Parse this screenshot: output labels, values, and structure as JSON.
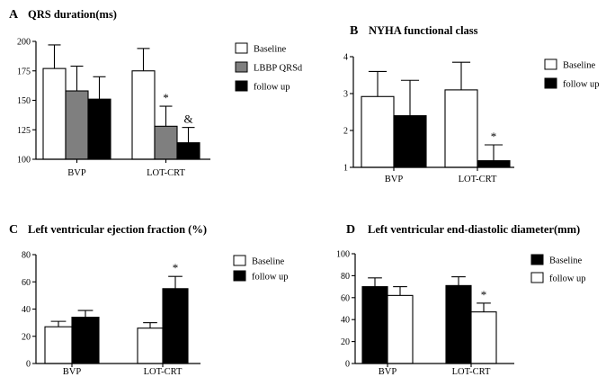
{
  "chart_data": [
    {
      "id": "A",
      "type": "bar",
      "letter": "A",
      "title": "QRS duration(ms)",
      "categories": [
        "BVP",
        "LOT-CRT"
      ],
      "ylim": [
        100,
        200
      ],
      "yticks": [
        100,
        125,
        150,
        175,
        200
      ],
      "legend_position": "right",
      "series": [
        {
          "name": "Baseline",
          "color": "#ffffff",
          "values": [
            177,
            175
          ],
          "errors": [
            20,
            19
          ]
        },
        {
          "name": "LBBP QRSd",
          "color": "#7f7f7f",
          "values": [
            158,
            128
          ],
          "errors": [
            21,
            17
          ]
        },
        {
          "name": "follow up",
          "color": "#000000",
          "values": [
            151,
            114
          ],
          "errors": [
            19,
            13
          ]
        }
      ],
      "annotations": [
        {
          "category": 1,
          "series": 1,
          "text": "*"
        },
        {
          "category": 1,
          "series": 2,
          "text": "&"
        }
      ]
    },
    {
      "id": "B",
      "type": "bar",
      "letter": "B",
      "title": "NYHA functional class",
      "categories": [
        "BVP",
        "LOT-CRT"
      ],
      "ylim": [
        1,
        4
      ],
      "yticks": [
        1,
        2,
        3,
        4
      ],
      "legend_position": "right",
      "series": [
        {
          "name": "Baseline",
          "color": "#ffffff",
          "values": [
            2.92,
            3.1
          ],
          "errors": [
            0.68,
            0.75
          ]
        },
        {
          "name": "follow up",
          "color": "#000000",
          "values": [
            2.4,
            1.18
          ],
          "errors": [
            0.96,
            0.43
          ]
        }
      ],
      "annotations": [
        {
          "category": 1,
          "series": 1,
          "text": "*"
        }
      ]
    },
    {
      "id": "C",
      "type": "bar",
      "letter": "C",
      "title": "Left ventricular ejection fraction (%)",
      "categories": [
        "BVP",
        "LOT-CRT"
      ],
      "ylim": [
        0,
        80
      ],
      "yticks": [
        0,
        20,
        40,
        60,
        80
      ],
      "legend_position": "right",
      "series": [
        {
          "name": "Baseline",
          "color": "#ffffff",
          "values": [
            27,
            26
          ],
          "errors": [
            4,
            4
          ]
        },
        {
          "name": "follow up",
          "color": "#000000",
          "values": [
            34,
            55
          ],
          "errors": [
            5,
            9
          ]
        }
      ],
      "annotations": [
        {
          "category": 1,
          "series": 1,
          "text": "*"
        }
      ]
    },
    {
      "id": "D",
      "type": "bar",
      "letter": "D",
      "title": "Left ventricular end-diastolic diameter(mm)",
      "categories": [
        "BVP",
        "LOT-CRT"
      ],
      "ylim": [
        0,
        100
      ],
      "yticks": [
        0,
        20,
        40,
        60,
        80,
        100
      ],
      "legend_position": "right",
      "series": [
        {
          "name": "Baseline",
          "color": "#000000",
          "values": [
            70,
            71
          ],
          "errors": [
            8,
            8
          ]
        },
        {
          "name": "follow up",
          "color": "#ffffff",
          "values": [
            62,
            47
          ],
          "errors": [
            8,
            8
          ]
        }
      ],
      "annotations": [
        {
          "category": 1,
          "series": 1,
          "text": "*"
        }
      ]
    }
  ]
}
